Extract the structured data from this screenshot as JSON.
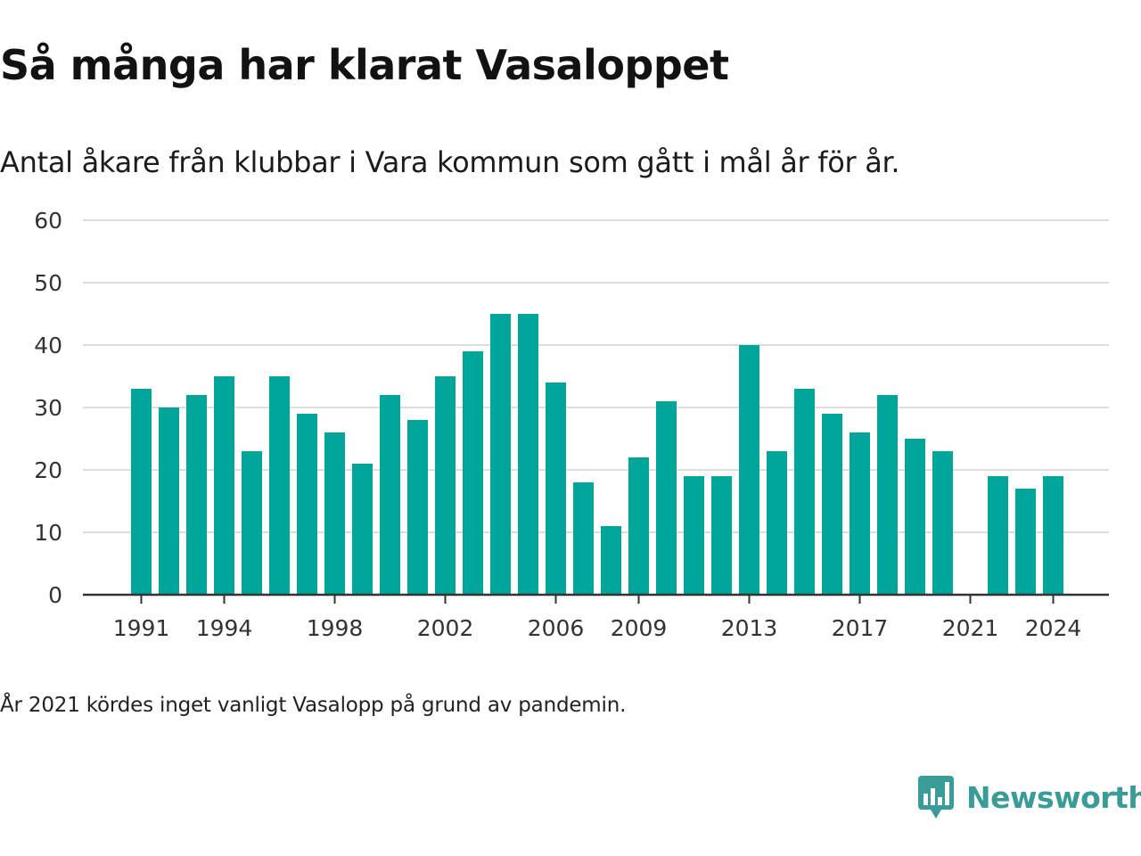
{
  "title": "Så många har klarat Vasaloppet",
  "subtitle": "Antal åkare från klubbar i Vara kommun som gått i mål år för år.",
  "note": "År 2021 kördes inget vanligt Vasalopp på grund av pandemin.",
  "brand": "Newsworthy",
  "colors": {
    "bar": "#00a59a",
    "grid": "#dcdcdc",
    "axis": "#333333",
    "brand": "#3a9c96"
  },
  "chart_data": {
    "type": "bar",
    "categories": [
      "1991",
      "1992",
      "1993",
      "1994",
      "1995",
      "1996",
      "1997",
      "1998",
      "1999",
      "2000",
      "2001",
      "2002",
      "2003",
      "2004",
      "2005",
      "2006",
      "2007",
      "2008",
      "2009",
      "2010",
      "2011",
      "2012",
      "2013",
      "2014",
      "2015",
      "2016",
      "2017",
      "2018",
      "2019",
      "2020",
      "2021",
      "2022",
      "2023",
      "2024"
    ],
    "values": [
      33,
      30,
      32,
      35,
      23,
      35,
      29,
      26,
      21,
      32,
      28,
      35,
      39,
      45,
      45,
      34,
      18,
      11,
      22,
      31,
      19,
      19,
      40,
      23,
      33,
      29,
      26,
      32,
      25,
      23,
      null,
      19,
      17,
      19
    ],
    "x_tick_labels": [
      "1991",
      "1994",
      "1998",
      "2002",
      "2006",
      "2009",
      "2013",
      "2017",
      "2021",
      "2024"
    ],
    "y_ticks": [
      0,
      10,
      20,
      30,
      40,
      50,
      60
    ],
    "ylim": [
      0,
      60
    ],
    "grid": true,
    "legend": false
  }
}
